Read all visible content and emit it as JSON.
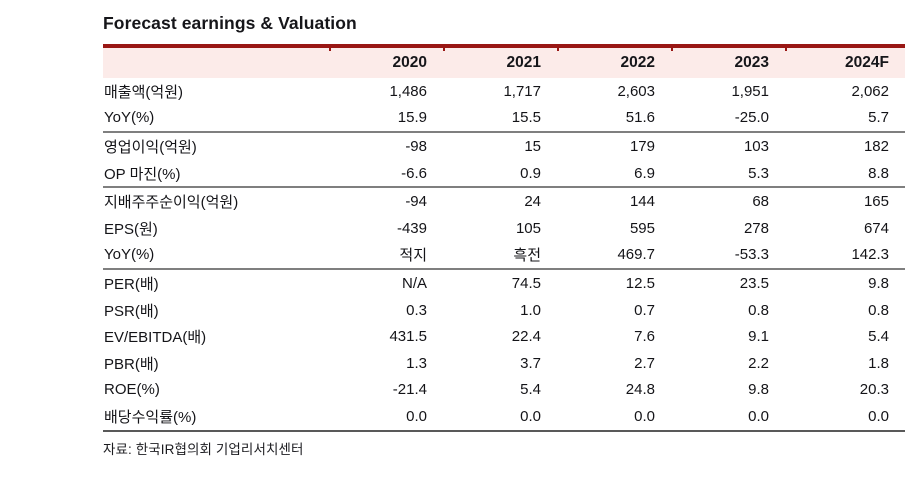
{
  "chart_data": {
    "type": "table",
    "title": "Forecast earnings & Valuation",
    "columns": [
      "",
      "2020",
      "2021",
      "2022",
      "2023",
      "2024F"
    ],
    "rows": [
      {
        "label": "매출액(억원)",
        "values": [
          "1,486",
          "1,717",
          "2,603",
          "1,951",
          "2,062"
        ]
      },
      {
        "label": "YoY(%)",
        "values": [
          "15.9",
          "15.5",
          "51.6",
          "-25.0",
          "5.7"
        ]
      },
      {
        "label": "영업이익(억원)",
        "values": [
          "-98",
          "15",
          "179",
          "103",
          "182"
        ]
      },
      {
        "label": "OP 마진(%)",
        "values": [
          "-6.6",
          "0.9",
          "6.9",
          "5.3",
          "8.8"
        ]
      },
      {
        "label": "지배주주순이익(억원)",
        "values": [
          "-94",
          "24",
          "144",
          "68",
          "165"
        ]
      },
      {
        "label": "EPS(원)",
        "values": [
          "-439",
          "105",
          "595",
          "278",
          "674"
        ]
      },
      {
        "label": "YoY(%)",
        "values": [
          "적지",
          "흑전",
          "469.7",
          "-53.3",
          "142.3"
        ]
      },
      {
        "label": "PER(배)",
        "values": [
          "N/A",
          "74.5",
          "12.5",
          "23.5",
          "9.8"
        ]
      },
      {
        "label": "PSR(배)",
        "values": [
          "0.3",
          "1.0",
          "0.7",
          "0.8",
          "0.8"
        ]
      },
      {
        "label": "EV/EBITDA(배)",
        "values": [
          "431.5",
          "22.4",
          "7.6",
          "9.1",
          "5.4"
        ]
      },
      {
        "label": "PBR(배)",
        "values": [
          "1.3",
          "3.7",
          "2.7",
          "2.2",
          "1.8"
        ]
      },
      {
        "label": "ROE(%)",
        "values": [
          "-21.4",
          "5.4",
          "24.8",
          "9.8",
          "20.3"
        ]
      },
      {
        "label": "배당수익률(%)",
        "values": [
          "0.0",
          "0.0",
          "0.0",
          "0.0",
          "0.0"
        ]
      }
    ],
    "section_end_rows": [
      1,
      3,
      6
    ],
    "source": "자료: 한국IR협의회 기업리서치센터",
    "colors": {
      "accent_red": "#991714",
      "header_bg": "#fcebe9",
      "section_rule": "#7f7f7f",
      "bottom_rule": "#595959"
    }
  }
}
